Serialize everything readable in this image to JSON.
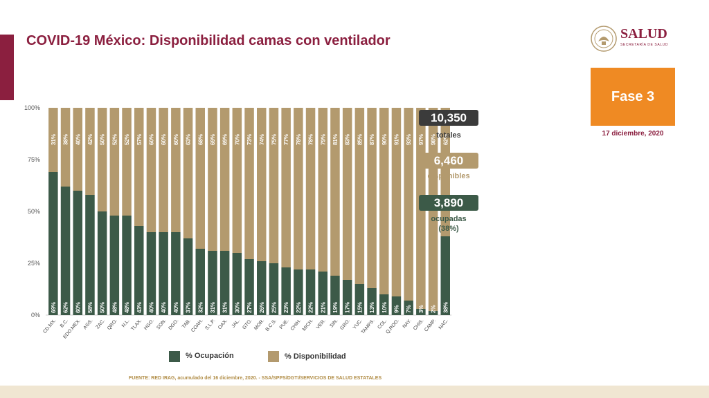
{
  "header": {
    "title": "COVID-19 México: Disponibilidad camas con ventilador",
    "logo_text": "SALUD",
    "logo_subtext": "SECRETARÍA DE SALUD"
  },
  "phase": {
    "label": "Fase 3",
    "date": "17 diciembre, 2020"
  },
  "stats": {
    "totales_value": "10,350",
    "totales_label": "totales",
    "disponibles_value": "6,460",
    "disponibles_label": "disponibles",
    "ocupadas_value": "3,890",
    "ocupadas_label": "ocupadas",
    "ocupadas_pct": "(38%)"
  },
  "legend": {
    "ocupacion": "% Ocupación",
    "disponibilidad": "% Disponibilidad"
  },
  "footer": {
    "source": "FUENTE: RED IRAG, acumulado del 16 diciembre, 2020. -  SSA/SPPS/DGTI/SERVICIOS DE SALUD ESTATALES"
  },
  "colors": {
    "ocupacion": "#3c5a48",
    "disponibilidad": "#b39a6e",
    "stat_totales": "#3b3b3b",
    "stat_disponibles": "#b39a6e",
    "stat_ocupadas": "#3c5a48",
    "accent": "#8b1f3f",
    "fase": "#ef8a23",
    "label_disponibles": "#b39a6e",
    "label_ocupadas": "#3c5a48"
  },
  "chart_data": {
    "type": "bar",
    "stacked": true,
    "categories": [
      "CD.MX.",
      "B.C.",
      "EDO.MEX.",
      "AGS.",
      "ZAC.",
      "QRO.",
      "N.L.",
      "TLAX.",
      "HGO.",
      "SON.",
      "DGO.",
      "TAB.",
      "COAH.",
      "S.L.P.",
      "OAX.",
      "JAL.",
      "GTO.",
      "MOR.",
      "B.C.S.",
      "PUE.",
      "CHIH.",
      "MICH.",
      "VER.",
      "SIN.",
      "GRO.",
      "YUC.",
      "TAMPS.",
      "COL.",
      "Q.ROO.",
      "NAY.",
      "CHIS.",
      "CAMP.",
      "NAC."
    ],
    "series": [
      {
        "name": "% Ocupación",
        "values": [
          69,
          62,
          60,
          58,
          50,
          48,
          48,
          43,
          40,
          40,
          40,
          37,
          32,
          31,
          31,
          30,
          27,
          26,
          25,
          23,
          22,
          22,
          21,
          19,
          17,
          15,
          13,
          10,
          9,
          7,
          3,
          2,
          38
        ]
      },
      {
        "name": "% Disponibilidad",
        "values": [
          31,
          38,
          40,
          42,
          50,
          52,
          52,
          57,
          60,
          60,
          60,
          63,
          68,
          69,
          69,
          70,
          73,
          74,
          75,
          77,
          78,
          78,
          79,
          81,
          83,
          85,
          87,
          90,
          91,
          93,
          97,
          98,
          62
        ]
      }
    ],
    "y_ticks": [
      "0%",
      "25%",
      "50%",
      "75%",
      "100%"
    ],
    "ylim": [
      0,
      100
    ],
    "xlabel": "",
    "ylabel": ""
  }
}
